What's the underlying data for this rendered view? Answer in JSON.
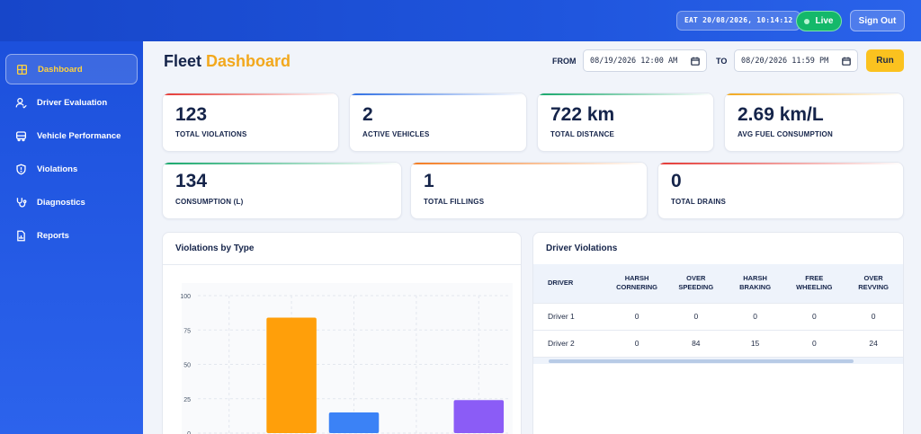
{
  "header": {
    "clock": "EAT 20/08/2026, 10:14:12",
    "live_label": "Live",
    "signout_label": "Sign Out"
  },
  "sidebar": {
    "items": [
      {
        "label": "Dashboard",
        "icon": "grid-icon",
        "active": true
      },
      {
        "label": "Driver Evaluation",
        "icon": "user-check-icon"
      },
      {
        "label": "Vehicle Performance",
        "icon": "truck-icon"
      },
      {
        "label": "Violations",
        "icon": "shield-icon"
      },
      {
        "label": "Diagnostics",
        "icon": "stethoscope-icon"
      },
      {
        "label": "Reports",
        "icon": "report-icon"
      }
    ]
  },
  "page": {
    "title_main": "Fleet",
    "title_accent": "Dashboard",
    "from_label": "FROM",
    "from_value": "08/19/2026 12:00 AM",
    "to_label": "TO",
    "to_value": "08/20/2026 11:59 PM",
    "run_label": "Run"
  },
  "stats_row1": [
    {
      "value": "123",
      "label": "TOTAL VIOLATIONS",
      "color": "#e53935"
    },
    {
      "value": "2",
      "label": "ACTIVE VEHICLES",
      "color": "#2f6fe4"
    },
    {
      "value": "722 km",
      "label": "TOTAL DISTANCE",
      "color": "#17a86b"
    },
    {
      "value": "2.69 km/L",
      "label": "AVG FUEL CONSUMPTION",
      "color": "#f2a81d"
    }
  ],
  "stats_row2": [
    {
      "value": "134",
      "label": "CONSUMPTION (L)",
      "color": "#17a86b"
    },
    {
      "value": "1",
      "label": "TOTAL FILLINGS",
      "color": "#f47b20"
    },
    {
      "value": "0",
      "label": "TOTAL DRAINS",
      "color": "#e53935"
    }
  ],
  "violations_panel": {
    "title": "Violations by Type"
  },
  "chart_data": {
    "type": "bar",
    "categories": [
      "Harsh Cornering",
      "Over Speeding",
      "Harsh Braking",
      "Free Wheeling",
      "Over Revving"
    ],
    "values": [
      0,
      84,
      15,
      0,
      24
    ],
    "colors": [
      "#f59e0b",
      "#ff9f0a",
      "#3b82f6",
      "#10b981",
      "#8b5cf6"
    ],
    "ylim": [
      0,
      100
    ],
    "yticks": [
      "0",
      "25",
      "50",
      "75",
      "100"
    ],
    "grid": true
  },
  "driver_panel": {
    "title": "Driver Violations",
    "columns": [
      "DRIVER",
      "HARSH CORNERING",
      "OVER SPEEDING",
      "HARSH BRAKING",
      "FREE WHEELING",
      "OVER REVVING"
    ],
    "rows": [
      [
        "Driver 1",
        "0",
        "0",
        "0",
        "0",
        "0"
      ],
      [
        "Driver 2",
        "0",
        "84",
        "15",
        "0",
        "24"
      ]
    ]
  }
}
